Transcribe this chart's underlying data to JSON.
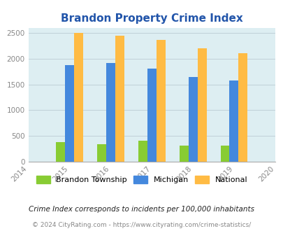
{
  "title": "Brandon Property Crime Index",
  "title_color": "#2255aa",
  "years": [
    2015,
    2016,
    2017,
    2018,
    2019
  ],
  "x_ticks": [
    2014,
    2015,
    2016,
    2017,
    2018,
    2019,
    2020
  ],
  "brandon": [
    385,
    335,
    405,
    310,
    315
  ],
  "michigan": [
    1875,
    1920,
    1800,
    1640,
    1580
  ],
  "national": [
    2500,
    2450,
    2360,
    2200,
    2100
  ],
  "brandon_color": "#88cc33",
  "michigan_color": "#4488dd",
  "national_color": "#ffbb44",
  "bg_color": "#ddeef2",
  "ylim": [
    0,
    2600
  ],
  "yticks": [
    0,
    500,
    1000,
    1500,
    2000,
    2500
  ],
  "bar_width": 0.22,
  "legend_labels": [
    "Brandon Township",
    "Michigan",
    "National"
  ],
  "note": "Crime Index corresponds to incidents per 100,000 inhabitants",
  "note_color": "#222222",
  "copyright": "© 2024 CityRating.com - https://www.cityrating.com/crime-statistics/",
  "copyright_color": "#888888",
  "grid_color": "#c0d0d8"
}
